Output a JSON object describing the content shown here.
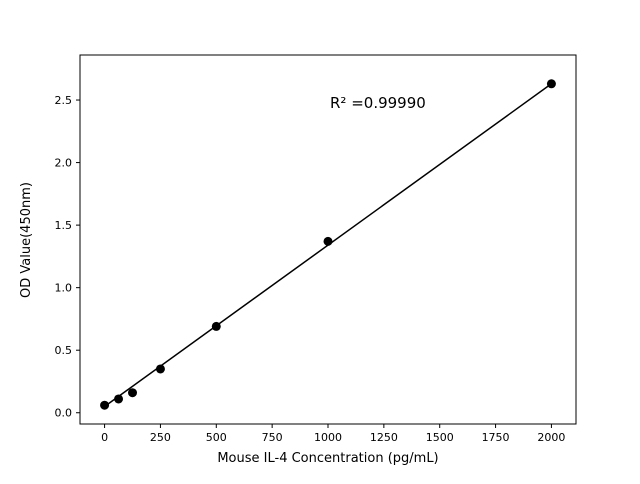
{
  "chart_data": {
    "type": "scatter",
    "title": "",
    "xlabel": "Mouse IL-4 Concentration (pg/mL)",
    "ylabel": "OD Value(450nm)",
    "annotation": "R² =0.99990",
    "x": [
      0,
      62.5,
      125,
      250,
      500,
      1000,
      2000
    ],
    "y": [
      0.06,
      0.11,
      0.16,
      0.35,
      0.69,
      1.37,
      2.63
    ],
    "fit_line": {
      "x1": 0,
      "y1": 0.05,
      "x2": 2000,
      "y2": 2.63
    },
    "xlim": [
      -110,
      2110
    ],
    "ylim": [
      -0.09,
      2.86
    ],
    "xticks": [
      0,
      250,
      500,
      750,
      1000,
      1250,
      1500,
      1750,
      2000
    ],
    "xtick_labels": [
      "0",
      "250",
      "500",
      "750",
      "1000",
      "1250",
      "1500",
      "1750",
      "2000"
    ],
    "yticks": [
      0.0,
      0.5,
      1.0,
      1.5,
      2.0,
      2.5
    ],
    "ytick_labels": [
      "0.0",
      "0.5",
      "1.0",
      "1.5",
      "2.0",
      "2.5"
    ],
    "grid": "off",
    "legend": "none",
    "marker_color": "#000000",
    "line_color": "#000000",
    "frame_color": "#000000",
    "background_color": "#ffffff"
  }
}
